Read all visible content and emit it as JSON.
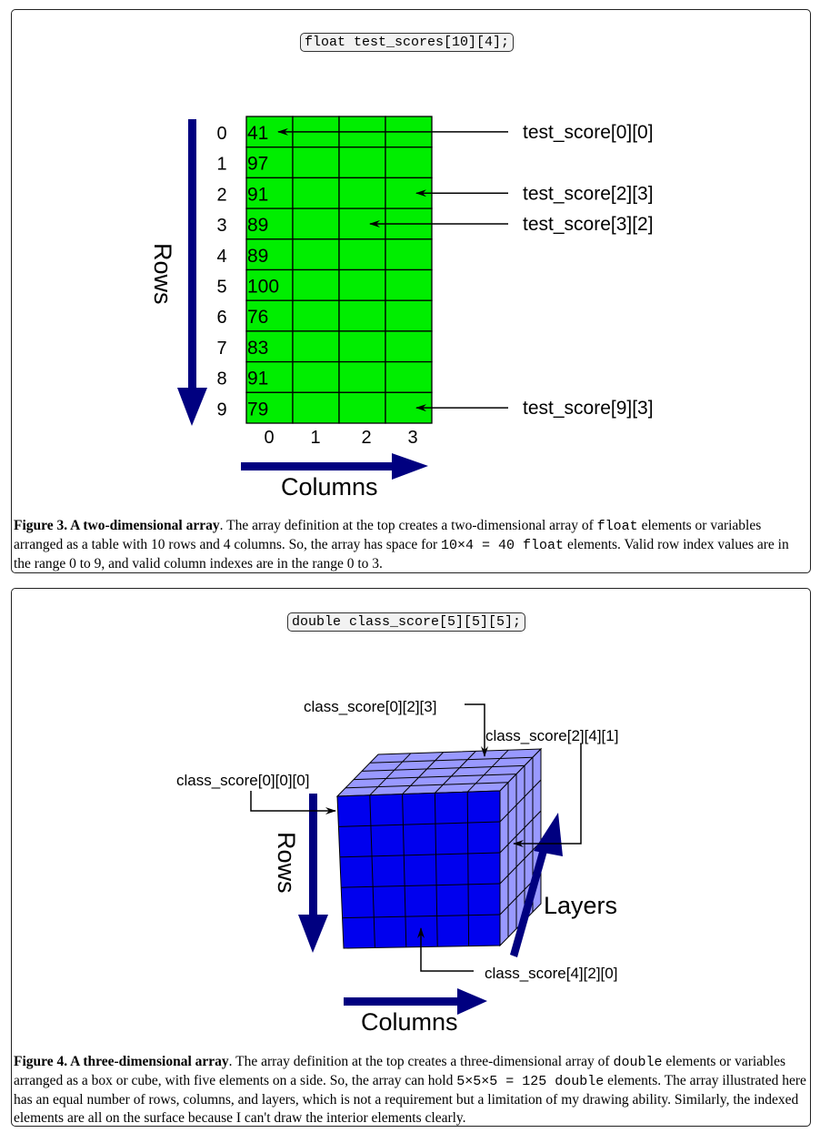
{
  "figure3": {
    "code": "float test_scores[10][4];",
    "row_axis_label": "Rows",
    "column_axis_label": "Columns",
    "row_indices": [
      "0",
      "1",
      "2",
      "3",
      "4",
      "5",
      "6",
      "7",
      "8",
      "9"
    ],
    "column_indices": [
      "0",
      "1",
      "2",
      "3"
    ],
    "column0_values": [
      "41",
      "97",
      "91",
      "89",
      "89",
      "100",
      "76",
      "83",
      "91",
      "79"
    ],
    "pointers": [
      {
        "label": "test_score[0][0]",
        "row": 0,
        "col": 0
      },
      {
        "label": "test_score[2][3]",
        "row": 2,
        "col": 3
      },
      {
        "label": "test_score[3][2]",
        "row": 3,
        "col": 2
      },
      {
        "label": "test_score[9][3]",
        "row": 9,
        "col": 3
      }
    ],
    "cell_color": "#00ee00",
    "arrow_color": "#000080",
    "caption": {
      "bold": "Figure 3. A two-dimensional array",
      "t1": ". The array definition at the top creates a two-dimensional array of ",
      "c1": "float",
      "t2": " elements or variables arranged as a table with 10 rows and 4 columns. So, the array has space for ",
      "c2": "10×4 = 40 float",
      "t3": " elements. Valid row index values are in the range 0 to 9, and valid column indexes are in the range 0 to 3."
    }
  },
  "figure4": {
    "code": "double class_score[5][5][5];",
    "row_axis_label": "Rows",
    "column_axis_label": "Columns",
    "layer_axis_label": "Layers",
    "pointer_labels": {
      "p023": "class_score[0][2][3]",
      "p241": "class_score[2][4][1]",
      "p000": "class_score[0][0][0]",
      "p420": "class_score[4][2][0]"
    },
    "front_color": "#0000ee",
    "side_color": "#9999ff",
    "arrow_color": "#000080",
    "caption": {
      "bold": "Figure 4. A three-dimensional array",
      "t1": ". The array definition at the top creates a three-dimensional array of ",
      "c1": "double",
      "t2": " elements or variables arranged as a box or cube, with five elements on a side. So, the array can hold ",
      "c2": "5×5×5 = 125 double",
      "t3": " elements. The array illustrated here has an equal number of rows, columns, and layers, which is not a requirement but a limitation of my drawing ability. Similarly, the indexed elements are all on the surface because I can't draw the interior elements clearly."
    }
  }
}
